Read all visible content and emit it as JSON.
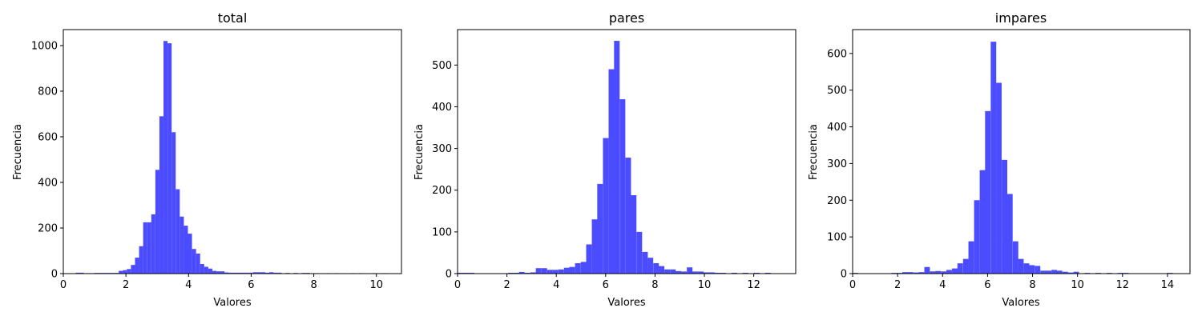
{
  "chart_data": [
    {
      "type": "histogram",
      "title": "total",
      "xlabel": "Valores",
      "ylabel": "Frecuencia",
      "xlim": [
        0,
        10.8
      ],
      "ylim": [
        0,
        1070
      ],
      "xticks": [
        0,
        2,
        4,
        6,
        8,
        10
      ],
      "yticks": [
        0,
        200,
        400,
        600,
        800,
        1000
      ],
      "bar_color": "#4b4bff",
      "bin_width": 0.1296,
      "bins": [
        [
          0.4,
          4
        ],
        [
          0.53,
          4
        ],
        [
          0.73,
          2
        ],
        [
          0.86,
          2
        ],
        [
          0.99,
          3
        ],
        [
          1.12,
          3
        ],
        [
          1.25,
          3
        ],
        [
          1.38,
          3
        ],
        [
          1.51,
          3
        ],
        [
          1.64,
          3
        ],
        [
          1.77,
          12
        ],
        [
          1.9,
          15
        ],
        [
          2.03,
          20
        ],
        [
          2.16,
          38
        ],
        [
          2.29,
          70
        ],
        [
          2.42,
          120
        ],
        [
          2.55,
          225
        ],
        [
          2.68,
          225
        ],
        [
          2.81,
          260
        ],
        [
          2.94,
          455
        ],
        [
          3.07,
          690
        ],
        [
          3.2,
          1020
        ],
        [
          3.33,
          1010
        ],
        [
          3.46,
          620
        ],
        [
          3.59,
          370
        ],
        [
          3.72,
          250
        ],
        [
          3.85,
          210
        ],
        [
          3.98,
          175
        ],
        [
          4.11,
          108
        ],
        [
          4.24,
          88
        ],
        [
          4.37,
          42
        ],
        [
          4.5,
          30
        ],
        [
          4.63,
          22
        ],
        [
          4.76,
          12
        ],
        [
          4.89,
          10
        ],
        [
          5.02,
          10
        ],
        [
          5.15,
          5
        ],
        [
          5.28,
          4
        ],
        [
          5.41,
          4
        ],
        [
          5.54,
          4
        ],
        [
          5.67,
          4
        ],
        [
          5.8,
          4
        ],
        [
          5.93,
          4
        ],
        [
          6.06,
          6
        ],
        [
          6.19,
          6
        ],
        [
          6.32,
          6
        ],
        [
          6.45,
          4
        ],
        [
          6.58,
          6
        ],
        [
          6.71,
          4
        ],
        [
          6.84,
          4
        ],
        [
          7.1,
          3
        ],
        [
          7.36,
          3
        ],
        [
          7.62,
          3
        ],
        [
          7.75,
          3
        ],
        [
          8.01,
          2
        ],
        [
          8.4,
          2
        ],
        [
          8.66,
          2
        ],
        [
          9.18,
          2
        ],
        [
          9.44,
          2
        ],
        [
          9.83,
          2
        ],
        [
          10.2,
          2
        ]
      ]
    },
    {
      "type": "histogram",
      "title": "pares",
      "xlabel": "Valores",
      "ylabel": "Frecuencia",
      "xlim": [
        0,
        13.7
      ],
      "ylim": [
        0,
        585
      ],
      "xticks": [
        0,
        2,
        4,
        6,
        8,
        10,
        12
      ],
      "yticks": [
        0,
        100,
        200,
        300,
        400,
        500
      ],
      "bar_color": "#4b4bff",
      "bin_width": 0.2265,
      "bins": [
        [
          0.0,
          2
        ],
        [
          0.23,
          2
        ],
        [
          0.45,
          2
        ],
        [
          2.04,
          2
        ],
        [
          2.27,
          2
        ],
        [
          2.49,
          4
        ],
        [
          2.72,
          2
        ],
        [
          2.95,
          3
        ],
        [
          3.17,
          13
        ],
        [
          3.4,
          13
        ],
        [
          3.63,
          9
        ],
        [
          3.85,
          9
        ],
        [
          4.08,
          10
        ],
        [
          4.31,
          14
        ],
        [
          4.53,
          16
        ],
        [
          4.76,
          25
        ],
        [
          4.99,
          28
        ],
        [
          5.21,
          70
        ],
        [
          5.44,
          130
        ],
        [
          5.66,
          215
        ],
        [
          5.89,
          325
        ],
        [
          6.12,
          490
        ],
        [
          6.34,
          558
        ],
        [
          6.57,
          418
        ],
        [
          6.8,
          278
        ],
        [
          7.02,
          188
        ],
        [
          7.25,
          100
        ],
        [
          7.48,
          52
        ],
        [
          7.7,
          38
        ],
        [
          7.93,
          25
        ],
        [
          8.15,
          18
        ],
        [
          8.38,
          10
        ],
        [
          8.61,
          10
        ],
        [
          8.83,
          6
        ],
        [
          9.06,
          5
        ],
        [
          9.29,
          15
        ],
        [
          9.51,
          5
        ],
        [
          9.74,
          5
        ],
        [
          9.97,
          3
        ],
        [
          10.19,
          3
        ],
        [
          10.42,
          2
        ],
        [
          10.65,
          2
        ],
        [
          11.1,
          2
        ],
        [
          11.55,
          2
        ],
        [
          12.01,
          2
        ],
        [
          12.46,
          2
        ]
      ]
    },
    {
      "type": "histogram",
      "title": "impares",
      "xlabel": "Valores",
      "ylabel": "Frecuencia",
      "xlim": [
        0,
        15.0
      ],
      "ylim": [
        0,
        665
      ],
      "xticks": [
        0,
        2,
        4,
        6,
        8,
        10,
        12,
        14
      ],
      "yticks": [
        0,
        100,
        200,
        300,
        400,
        500,
        600
      ],
      "bar_color": "#4b4bff",
      "bin_width": 0.2454,
      "bins": [
        [
          0.0,
          2
        ],
        [
          1.72,
          2
        ],
        [
          1.96,
          2
        ],
        [
          2.21,
          4
        ],
        [
          2.45,
          4
        ],
        [
          2.7,
          3
        ],
        [
          2.94,
          4
        ],
        [
          3.19,
          18
        ],
        [
          3.44,
          6
        ],
        [
          3.68,
          7
        ],
        [
          3.93,
          6
        ],
        [
          4.17,
          10
        ],
        [
          4.42,
          14
        ],
        [
          4.66,
          28
        ],
        [
          4.91,
          40
        ],
        [
          5.15,
          88
        ],
        [
          5.4,
          200
        ],
        [
          5.65,
          282
        ],
        [
          5.89,
          443
        ],
        [
          6.14,
          632
        ],
        [
          6.38,
          520
        ],
        [
          6.63,
          310
        ],
        [
          6.87,
          217
        ],
        [
          7.12,
          88
        ],
        [
          7.36,
          40
        ],
        [
          7.61,
          28
        ],
        [
          7.85,
          23
        ],
        [
          8.1,
          21
        ],
        [
          8.35,
          8
        ],
        [
          8.59,
          8
        ],
        [
          8.84,
          10
        ],
        [
          9.08,
          8
        ],
        [
          9.33,
          5
        ],
        [
          9.57,
          3
        ],
        [
          9.82,
          5
        ],
        [
          10.31,
          2
        ],
        [
          10.8,
          2
        ],
        [
          11.29,
          2
        ],
        [
          11.78,
          2
        ],
        [
          12.03,
          2
        ],
        [
          13.99,
          2
        ]
      ]
    }
  ]
}
